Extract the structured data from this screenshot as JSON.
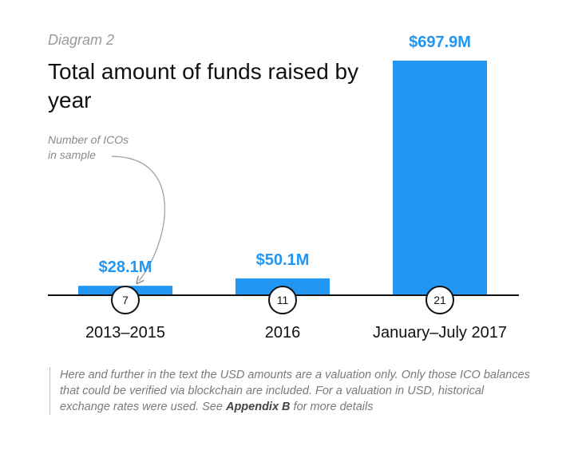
{
  "diagram_label": "Diagram 2",
  "chart_data": {
    "type": "bar",
    "title": "Total amount of funds raised by year",
    "categories": [
      "2013–2015",
      "2016",
      "January–July 2017"
    ],
    "values": [
      28.1,
      50.1,
      697.9
    ],
    "value_labels": [
      "$28.1M",
      "$50.1M",
      "$697.9M"
    ],
    "ico_counts": [
      "7",
      "11",
      "21"
    ],
    "ylim": [
      0,
      697.9
    ],
    "grid": false,
    "bar_color": "#2196f3"
  },
  "annotation": {
    "line1": "Number of ICOs",
    "line2": "in sample"
  },
  "note": {
    "text": "Here and further in the text the USD amounts are a valuation only. Only those ICO balances that could be verified via blockchain are included. For a valuation in USD, historical exchange rates were used. See ",
    "link": "Appendix B",
    "suffix": " for more details"
  }
}
